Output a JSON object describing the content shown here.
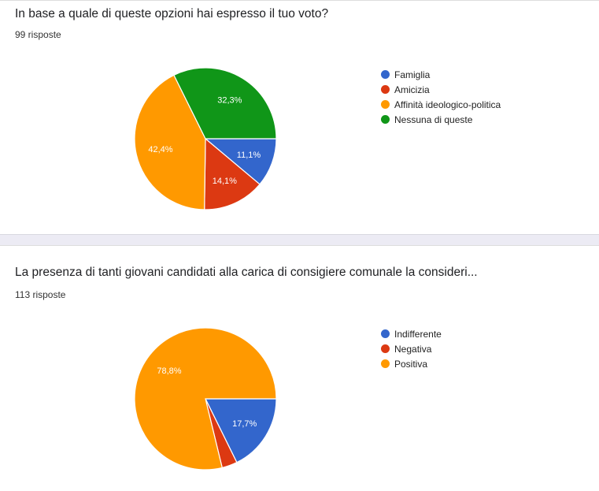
{
  "chart_data": [
    {
      "type": "pie",
      "title": "In base a quale di queste opzioni hai espresso il tuo voto?",
      "responses": "99 risposte",
      "legend_position": "right",
      "slices": [
        {
          "label": "Famiglia",
          "value": 11.1,
          "text": "11,1%",
          "color": "#3366cc"
        },
        {
          "label": "Amicizia",
          "value": 14.1,
          "text": "14,1%",
          "color": "#dc3912"
        },
        {
          "label": "Affinità ideologico-politica",
          "value": 42.4,
          "text": "42,4%",
          "color": "#ff9900"
        },
        {
          "label": "Nessuna di queste",
          "value": 32.3,
          "text": "32,3%",
          "color": "#109618"
        }
      ]
    },
    {
      "type": "pie",
      "title": "La presenza di tanti giovani candidati alla carica di consigiere comunale la consideri...",
      "responses": "113 risposte",
      "legend_position": "right",
      "slices": [
        {
          "label": "Indifferente",
          "value": 17.7,
          "text": "17,7%",
          "color": "#3366cc"
        },
        {
          "label": "Negativa",
          "value": 3.5,
          "text": "",
          "color": "#dc3912"
        },
        {
          "label": "Positiva",
          "value": 78.8,
          "text": "78,8%",
          "color": "#ff9900"
        }
      ]
    }
  ]
}
